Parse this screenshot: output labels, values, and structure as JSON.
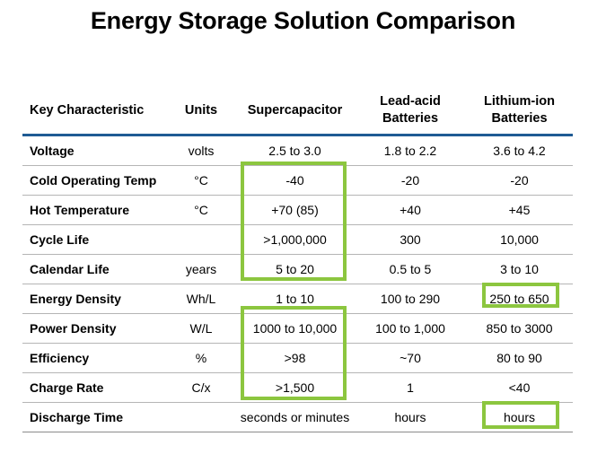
{
  "title": "Energy Storage Solution Comparison",
  "highlight_color": "#8cc63f",
  "header_rule_color": "#1f5b94",
  "table": {
    "headers": [
      "Key Characteristic",
      "Units",
      "Supercapacitor",
      "Lead-acid Batteries",
      "Lithium-ion Batteries"
    ],
    "rows": [
      [
        "Voltage",
        "volts",
        "2.5 to 3.0",
        "1.8 to 2.2",
        "3.6 to 4.2"
      ],
      [
        "Cold Operating Temp",
        "°C",
        "-40",
        "-20",
        "-20"
      ],
      [
        "Hot Temperature",
        "°C",
        "+70 (85)",
        "+40",
        "+45"
      ],
      [
        "Cycle Life",
        "",
        ">1,000,000",
        "300",
        "10,000"
      ],
      [
        "Calendar Life",
        "years",
        "5 to 20",
        "0.5 to 5",
        "3 to 10"
      ],
      [
        "Energy Density",
        "Wh/L",
        "1 to 10",
        "100 to 290",
        "250 to 650"
      ],
      [
        "Power Density",
        "W/L",
        "1000 to 10,000",
        "100 to 1,000",
        "850 to 3000"
      ],
      [
        "Efficiency",
        "%",
        ">98",
        "~70",
        "80 to 90"
      ],
      [
        "Charge Rate",
        "C/x",
        ">1,500",
        "1",
        "<40"
      ],
      [
        "Discharge Time",
        "",
        "seconds or minutes",
        "hours",
        "hours"
      ]
    ]
  }
}
